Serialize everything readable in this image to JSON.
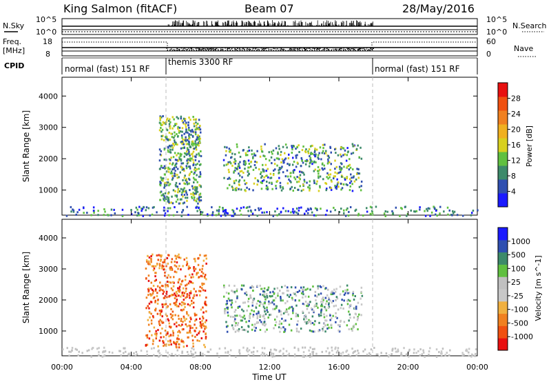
{
  "header": {
    "radar": "King Salmon (fitACF)",
    "beam": "Beam 07",
    "date": "28/May/2016"
  },
  "summary": {
    "nsky_label": "N.Sky",
    "nsearch_label": "N.Search",
    "freq_label": "Freq.",
    "freq_unit": "[MHz]",
    "nave_label": "Nave",
    "cpid_label": "CPID",
    "left_ticks_top": [
      "10^5",
      "10^0"
    ],
    "right_ticks_top": [
      "10^5",
      "10^0"
    ],
    "left_ticks_freq": [
      "18",
      "8"
    ],
    "right_ticks_nave": [
      "60",
      "0"
    ],
    "cpid_segments": [
      {
        "label": "normal (fast) 151 RF",
        "start": "00:00",
        "end": "06:00"
      },
      {
        "label": "themis 3300 RF",
        "start": "06:00",
        "end": "18:00"
      },
      {
        "label": "normal (fast) 151 RF",
        "start": "18:00",
        "end": "24:00"
      }
    ]
  },
  "colors": {
    "power_scale": [
      "#1a1aff",
      "#2f4fb0",
      "#3d8a6a",
      "#60c040",
      "#d8d020",
      "#f0b020",
      "#f08020",
      "#f05010",
      "#e81010"
    ],
    "velocity_scale": [
      "#e81010",
      "#f05010",
      "#f08020",
      "#f0b040",
      "#c8c8c8",
      "#c0c0c0",
      "#60c040",
      "#3d8a6a",
      "#2f4fb0",
      "#1a1aff"
    ]
  },
  "chart_data": [
    {
      "type": "heatmap",
      "panel": "power",
      "xlabel": "",
      "ylabel": "Slant Range [km]",
      "xlim": [
        "00:00",
        "24:00"
      ],
      "ylim": [
        200,
        4600
      ],
      "y_ticks": [
        "1000",
        "2000",
        "3000",
        "4000"
      ],
      "colorbar": {
        "label": "Power [dB]",
        "ticks": [
          "4",
          "8",
          "12",
          "16",
          "20",
          "24",
          "28"
        ],
        "range": [
          0,
          32
        ]
      },
      "regions": [
        {
          "t_start": 5.6,
          "t_end": 8.0,
          "r_start": 600,
          "r_end": 3400,
          "value": 10
        },
        {
          "t_start": 9.3,
          "t_end": 17.3,
          "r_start": 1000,
          "r_end": 2500,
          "value": 9
        },
        {
          "t_start": 0.0,
          "t_end": 24.0,
          "r_start": 200,
          "r_end": 500,
          "value": 6
        }
      ],
      "cpid_boundaries": [
        "06:00",
        "18:00"
      ]
    },
    {
      "type": "heatmap",
      "panel": "velocity",
      "xlabel": "Time UT",
      "ylabel": "Slant Range [km]",
      "xlim": [
        "00:00",
        "24:00"
      ],
      "ylim": [
        200,
        4600
      ],
      "y_ticks": [
        "1000",
        "2000",
        "3000",
        "4000"
      ],
      "x_ticks": [
        "00:00",
        "04:00",
        "08:00",
        "12:00",
        "16:00",
        "20:00",
        "00:00"
      ],
      "colorbar": {
        "label": "Velocity [m s^-1]",
        "ticks": [
          "-1000",
          "-500",
          "-100",
          "-25",
          "25",
          "100",
          "500",
          "1000"
        ]
      },
      "regions": [
        {
          "t_start": 4.8,
          "t_end": 8.3,
          "r_start": 500,
          "r_end": 3500,
          "value": -250
        },
        {
          "t_start": 9.3,
          "t_end": 17.3,
          "r_start": 1000,
          "r_end": 2500,
          "value": 50
        },
        {
          "t_start": 0.0,
          "t_end": 24.0,
          "r_start": 200,
          "r_end": 500,
          "value": 0
        }
      ],
      "cpid_boundaries": [
        "06:00",
        "18:00"
      ]
    }
  ]
}
